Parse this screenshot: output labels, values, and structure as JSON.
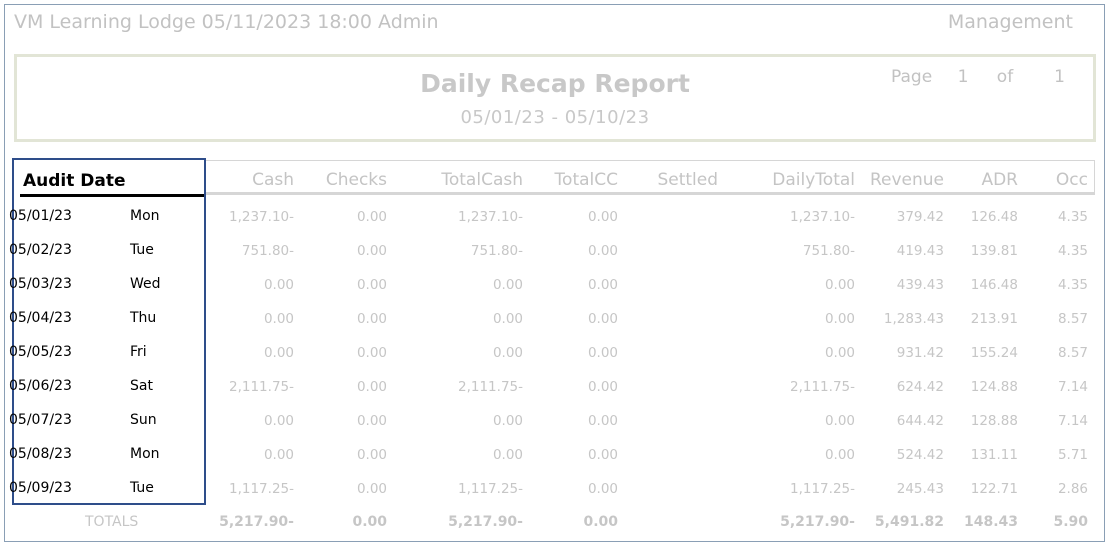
{
  "header": {
    "left": "VM Learning Lodge 05/11/2023 18:00  Admin",
    "right": "Management"
  },
  "report": {
    "title": "Daily Recap Report",
    "date_range": "05/01/23 - 05/10/23",
    "page_label": "Page",
    "page_num": "1",
    "page_of": "of",
    "page_total": "1"
  },
  "columns": {
    "audit_date": "Audit Date",
    "cash": "Cash",
    "checks": "Checks",
    "totalcash": "TotalCash",
    "totalcc": "TotalCC",
    "settled": "Settled",
    "dailytotal": "DailyTotal",
    "revenue": "Revenue",
    "adr": "ADR",
    "occ": "Occ"
  },
  "rows": [
    {
      "date": "05/01/23",
      "day": "Mon",
      "cash": "1,237.10-",
      "checks": "0.00",
      "totalcash": "1,237.10-",
      "totalcc": "0.00",
      "settled": "",
      "dailytotal": "1,237.10-",
      "revenue": "379.42",
      "adr": "126.48",
      "occ": "4.35"
    },
    {
      "date": "05/02/23",
      "day": "Tue",
      "cash": "751.80-",
      "checks": "0.00",
      "totalcash": "751.80-",
      "totalcc": "0.00",
      "settled": "",
      "dailytotal": "751.80-",
      "revenue": "419.43",
      "adr": "139.81",
      "occ": "4.35"
    },
    {
      "date": "05/03/23",
      "day": "Wed",
      "cash": "0.00",
      "checks": "0.00",
      "totalcash": "0.00",
      "totalcc": "0.00",
      "settled": "",
      "dailytotal": "0.00",
      "revenue": "439.43",
      "adr": "146.48",
      "occ": "4.35"
    },
    {
      "date": "05/04/23",
      "day": "Thu",
      "cash": "0.00",
      "checks": "0.00",
      "totalcash": "0.00",
      "totalcc": "0.00",
      "settled": "",
      "dailytotal": "0.00",
      "revenue": "1,283.43",
      "adr": "213.91",
      "occ": "8.57"
    },
    {
      "date": "05/05/23",
      "day": "Fri",
      "cash": "0.00",
      "checks": "0.00",
      "totalcash": "0.00",
      "totalcc": "0.00",
      "settled": "",
      "dailytotal": "0.00",
      "revenue": "931.42",
      "adr": "155.24",
      "occ": "8.57"
    },
    {
      "date": "05/06/23",
      "day": "Sat",
      "cash": "2,111.75-",
      "checks": "0.00",
      "totalcash": "2,111.75-",
      "totalcc": "0.00",
      "settled": "",
      "dailytotal": "2,111.75-",
      "revenue": "624.42",
      "adr": "124.88",
      "occ": "7.14"
    },
    {
      "date": "05/07/23",
      "day": "Sun",
      "cash": "0.00",
      "checks": "0.00",
      "totalcash": "0.00",
      "totalcc": "0.00",
      "settled": "",
      "dailytotal": "0.00",
      "revenue": "644.42",
      "adr": "128.88",
      "occ": "7.14"
    },
    {
      "date": "05/08/23",
      "day": "Mon",
      "cash": "0.00",
      "checks": "0.00",
      "totalcash": "0.00",
      "totalcc": "0.00",
      "settled": "",
      "dailytotal": "0.00",
      "revenue": "524.42",
      "adr": "131.11",
      "occ": "5.71"
    },
    {
      "date": "05/09/23",
      "day": "Tue",
      "cash": "1,117.25-",
      "checks": "0.00",
      "totalcash": "1,117.25-",
      "totalcc": "0.00",
      "settled": "",
      "dailytotal": "1,117.25-",
      "revenue": "245.43",
      "adr": "122.71",
      "occ": "2.86"
    }
  ],
  "totals": {
    "label": "TOTALS",
    "cash": "5,217.90-",
    "checks": "0.00",
    "totalcash": "5,217.90-",
    "totalcc": "0.00",
    "dailytotal": "5,217.90-",
    "revenue": "5,491.82",
    "adr": "148.43",
    "occ": "5.90"
  }
}
